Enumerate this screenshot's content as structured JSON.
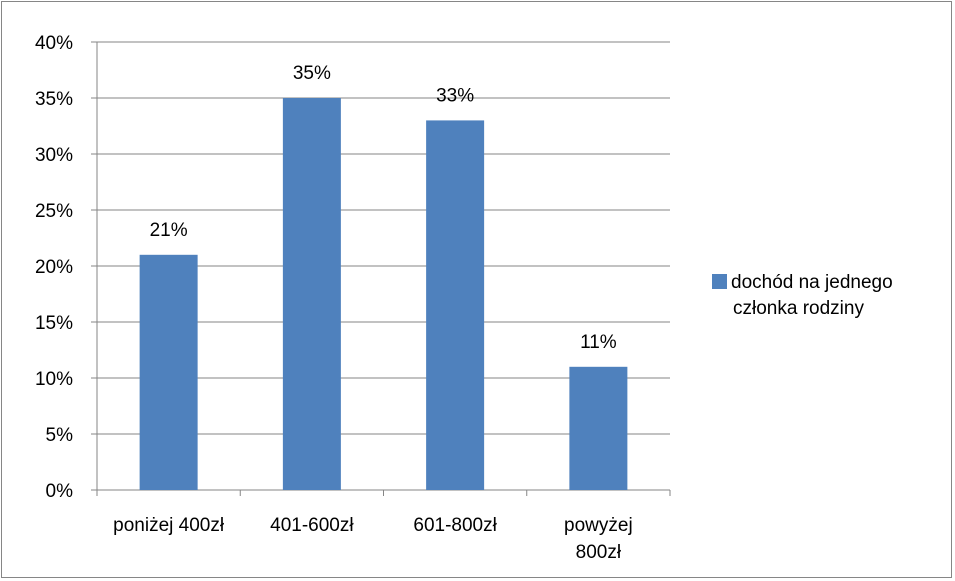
{
  "chart_data": {
    "type": "bar",
    "categories": [
      "poniżej 400zł",
      "401-600zł",
      "601-800zł",
      "powyżej 800zł"
    ],
    "category_lines": [
      [
        "poniżej 400zł"
      ],
      [
        "401-600zł"
      ],
      [
        "601-800zł"
      ],
      [
        "powyżej",
        "800zł"
      ]
    ],
    "series": [
      {
        "name": "dochód na jednego członka rodziny",
        "values": [
          21,
          35,
          33,
          11
        ],
        "color": "#4f81bd"
      }
    ],
    "data_labels": [
      "21%",
      "35%",
      "33%",
      "11%"
    ],
    "ylim": [
      0,
      40
    ],
    "yticks": [
      0,
      5,
      10,
      15,
      20,
      25,
      30,
      35,
      40
    ],
    "ytick_labels": [
      "0%",
      "5%",
      "10%",
      "15%",
      "20%",
      "25%",
      "30%",
      "35%",
      "40%"
    ],
    "grid": true,
    "legend": {
      "position": "right",
      "lines": [
        "dochód na jednego",
        "członka rodziny"
      ]
    }
  }
}
